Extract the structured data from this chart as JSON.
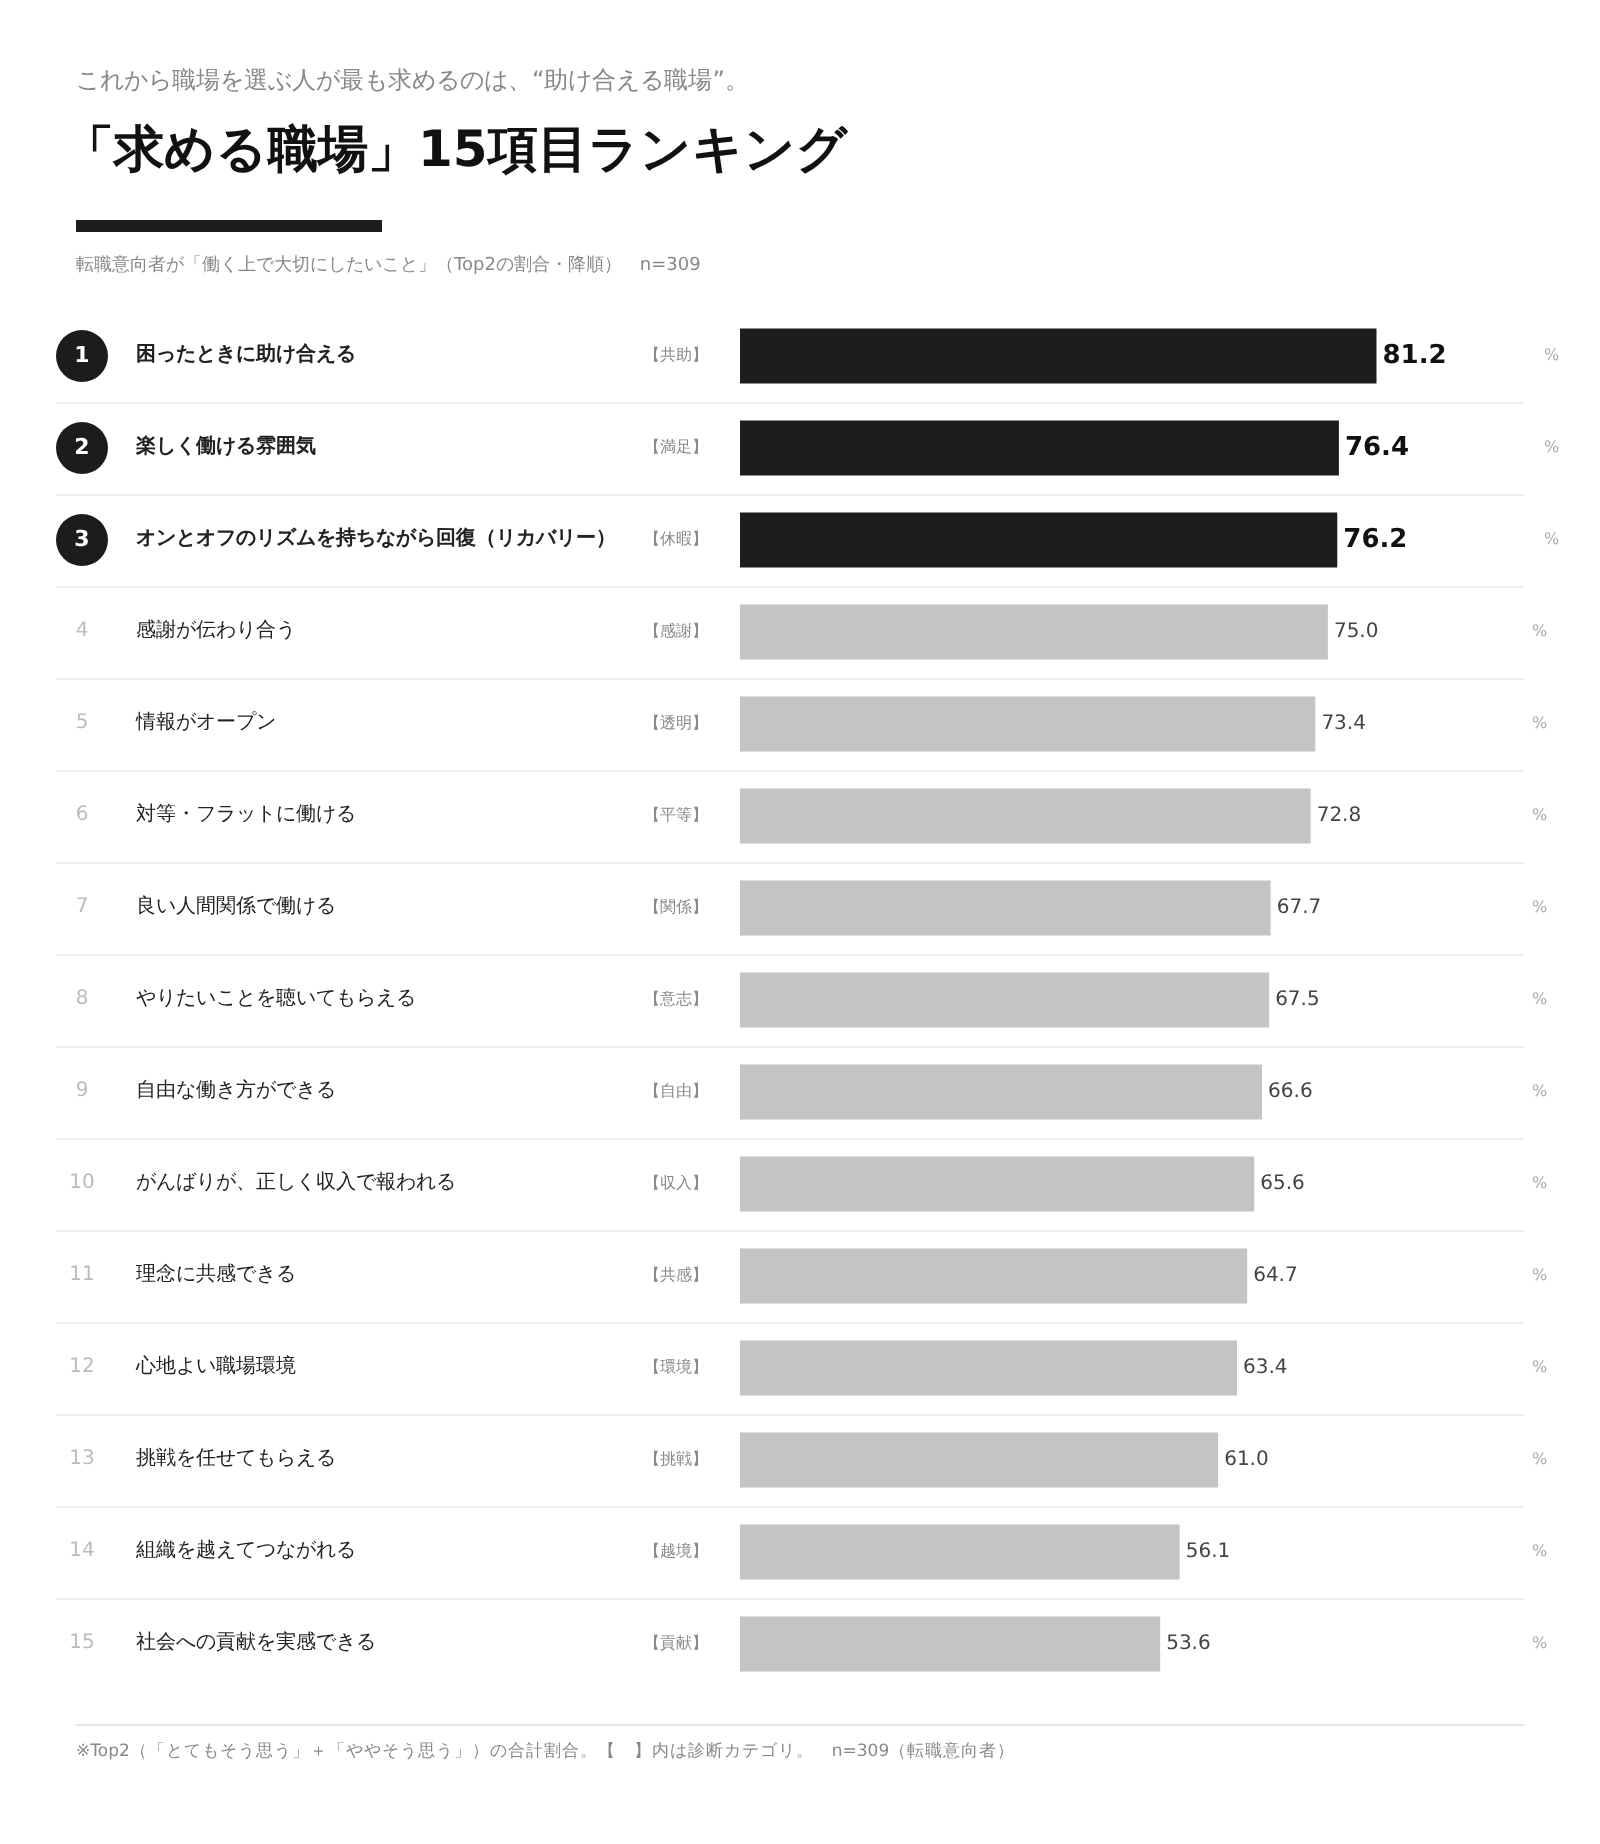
{
  "chart_data": {
    "type": "bar",
    "orientation": "horizontal",
    "title": "「求める職場」15項目ランキング",
    "subtitle": "これから職場を選ぶ人が最も求めるのは、“助け合える職場”。",
    "categories": [
      "困ったときに助け合える",
      "楽しく働ける雰囲気",
      "オンとオフのリズムを持ちながら回復（リカバリー）",
      "感謝が伝わり合う",
      "情報がオープン",
      "対等・フラットに働ける",
      "良い人間関係で働ける",
      "やりたいことを聴いてもらえる",
      "自由な働き方ができる",
      "がんばりが、正しく収入で報われる",
      "理念に共感できる",
      "心地よい職場環境",
      "挑戦を任せてもらえる",
      "組織を越えてつながれる",
      "社会への貢献を実感できる"
    ],
    "y2_categories": [
      "【共助】",
      "【満足】",
      "【休暇】",
      "【感謝】",
      "【透明】",
      "【平等】",
      "【関係】",
      "【意志】",
      "【自由】",
      "【収入】",
      "【共感】",
      "【環境】",
      "【挑戦】",
      "【越境】",
      "【貢献】"
    ],
    "values": [
      81.2,
      76.4,
      76.2,
      75.0,
      73.4,
      72.8,
      67.7,
      67.5,
      66.6,
      65.6,
      64.7,
      63.4,
      61.0,
      56.1,
      53.6
    ],
    "value_labels": [
      "81.2",
      "76.4",
      "76.2",
      "75.0",
      "73.4",
      "72.8",
      "67.7",
      "67.5",
      "66.6",
      "65.6",
      "64.7",
      "63.4",
      "61.0",
      "56.1",
      "53.6"
    ],
    "colors": [
      "#1c1c1c",
      "#1c1c1c",
      "#1c1c1c",
      "#c4c4c4",
      "#c4c4c4",
      "#c4c4c4",
      "#c4c4c4",
      "#c4c4c4",
      "#c4c4c4",
      "#c4c4c4",
      "#c4c4c4",
      "#c4c4c4",
      "#c4c4c4",
      "#c4c4c4",
      "#c4c4c4"
    ],
    "tick_labels": false,
    "grid": false,
    "annotations": [
      "転職意向者が「働く上で大切にしたいこと」（Top2の割合・降順）　n=309",
      "※Top2（「とてもそう思う」＋「ややそう思う」）の合計割合。【　】内は診断カテゴリ。　n=309（転職意向者）",
      "%",
      "1",
      "2",
      "3",
      "4",
      "5",
      "6",
      "7",
      "8",
      "9",
      "10",
      "11",
      "12",
      "13",
      "14",
      "15"
    ]
  }
}
